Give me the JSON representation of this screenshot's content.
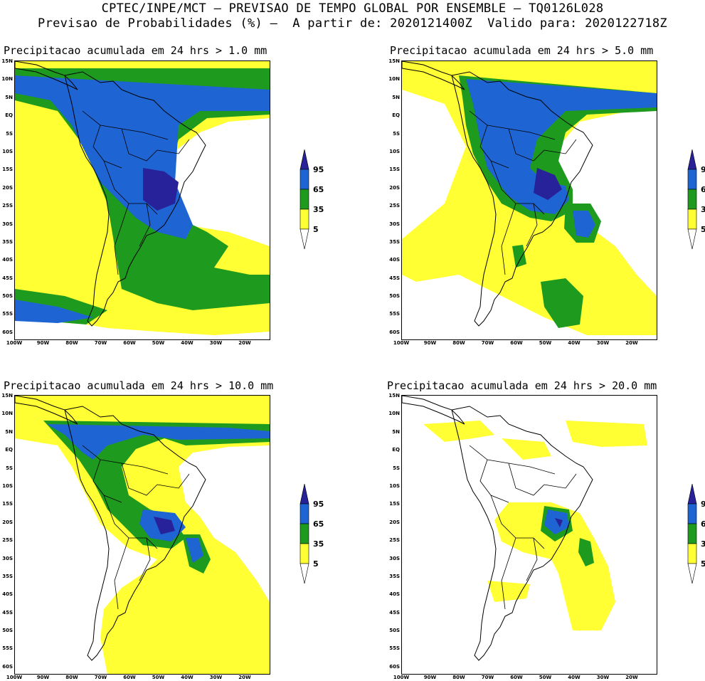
{
  "header": {
    "line1": "CPTEC/INPE/MCT – PREVISAO DE TEMPO GLOBAL POR ENSEMBLE – TQ0126L028",
    "line2": "Previsao de Probabilidades (%) –  A partir de: 2020121400Z  Valido para: 2020122718Z"
  },
  "axes": {
    "y_ticks": [
      "15N",
      "10N",
      "5N",
      "EQ",
      "5S",
      "10S",
      "15S",
      "20S",
      "25S",
      "30S",
      "35S",
      "40S",
      "45S",
      "50S",
      "55S",
      "60S"
    ],
    "x_ticks": [
      "100W",
      "90W",
      "80W",
      "70W",
      "60W",
      "50W",
      "40W",
      "30W",
      "20W"
    ]
  },
  "colorbar": {
    "levels": [
      "95",
      "65",
      "35",
      "5"
    ],
    "colors": {
      "yellow": "#ffff33",
      "green": "#1e9a1e",
      "blue": "#1e64d2",
      "navy": "#28229a"
    }
  },
  "panels": [
    {
      "title": "Precipitacao acumulada em 24 hrs > 1.0 mm"
    },
    {
      "title": "Precipitacao acumulada em 24 hrs > 5.0 mm"
    },
    {
      "title": "Precipitacao acumulada em 24 hrs > 10.0 mm"
    },
    {
      "title": "Precipitacao acumulada em 24 hrs > 20.0 mm"
    }
  ]
}
